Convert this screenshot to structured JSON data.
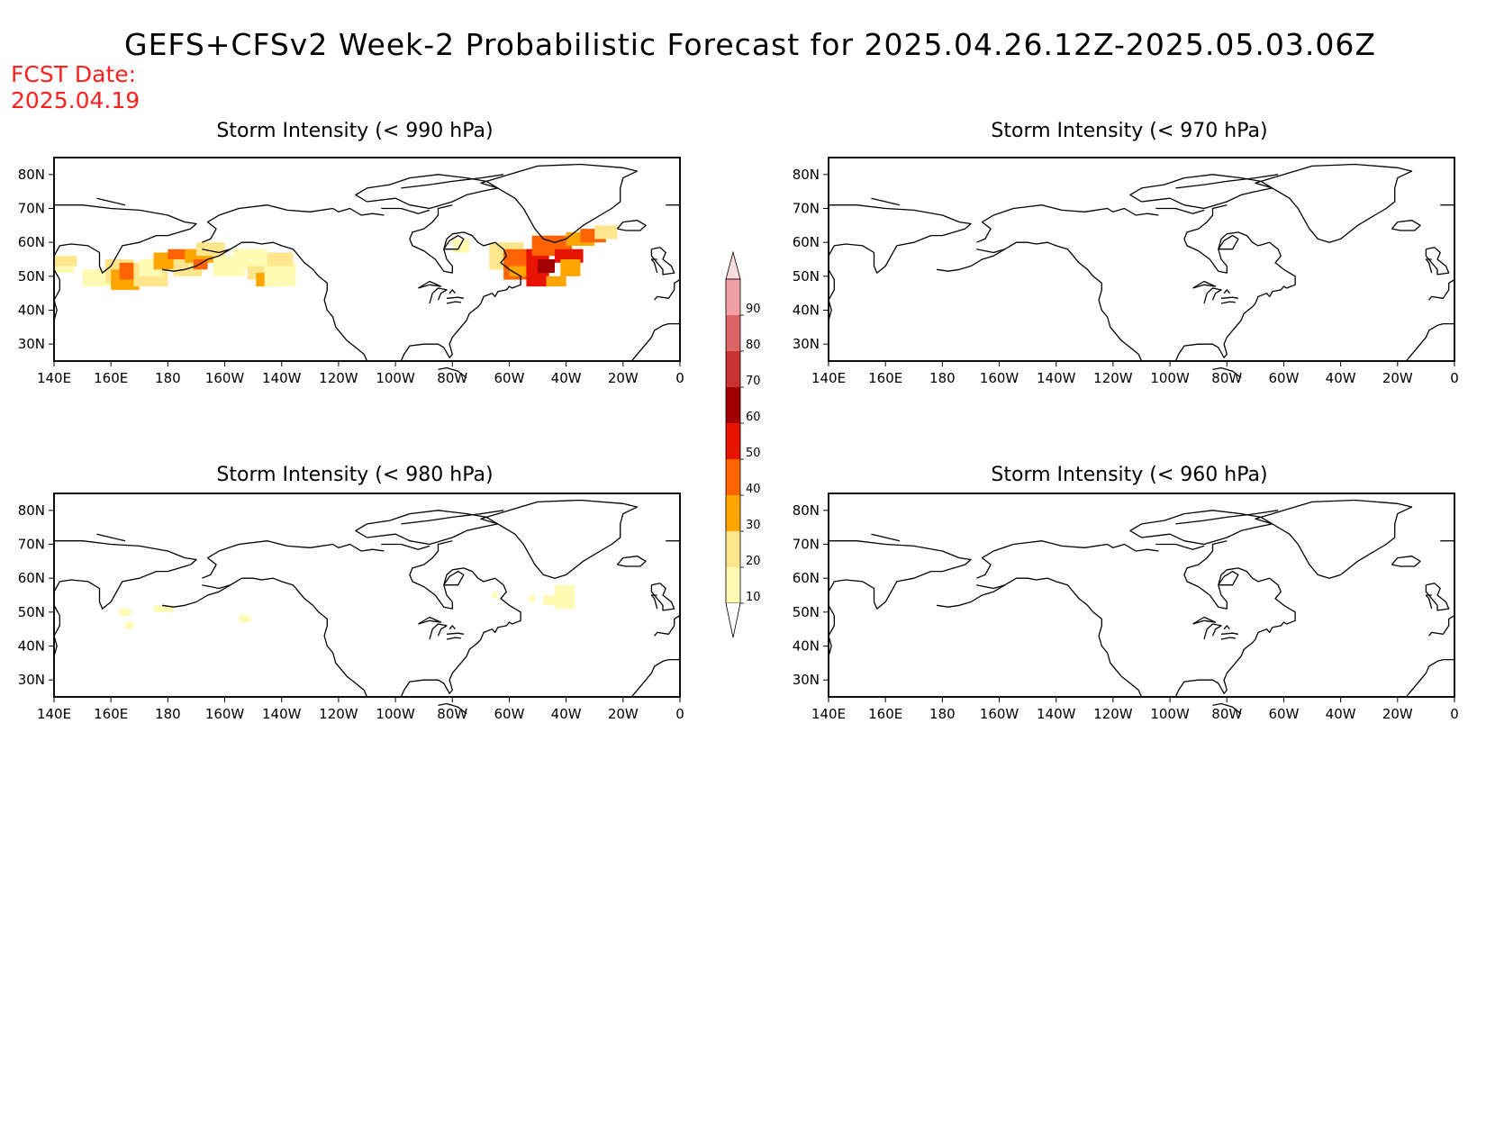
{
  "title": "GEFS+CFSv2 Week-2 Probabilistic Forecast for 2025.04.26.12Z-2025.05.03.06Z",
  "fcst_date": "FCST Date:\n2025.04.19",
  "panels": [
    {
      "title": "Storm Intensity (< 990 hPa)",
      "threshold_hpa": 990
    },
    {
      "title": "Storm Intensity (< 970 hPa)",
      "threshold_hpa": 970
    },
    {
      "title": "Storm Intensity (< 980 hPa)",
      "threshold_hpa": 980
    },
    {
      "title": "Storm Intensity (< 960 hPa)",
      "threshold_hpa": 960
    }
  ],
  "axes": {
    "lon_labels": [
      "140E",
      "160E",
      "180",
      "160W",
      "140W",
      "120W",
      "100W",
      "80W",
      "60W",
      "40W",
      "20W",
      "0"
    ],
    "lat_labels": [
      "80N",
      "70N",
      "60N",
      "50N",
      "40N",
      "30N"
    ]
  },
  "colorbar": {
    "labels": [
      "10",
      "20",
      "30",
      "40",
      "50",
      "60",
      "70",
      "80",
      "90"
    ],
    "colors": [
      "#fffab4",
      "#ffe68c",
      "#ffa500",
      "#ff6400",
      "#e61400",
      "#a00000",
      "#c83232",
      "#dc6464",
      "#f0a0a0",
      "#fadcdc"
    ]
  },
  "probability_areas": {
    "990": [
      {
        "region": "North Pacific",
        "lon_range": [
          "140E",
          "140W"
        ],
        "lat_range": [
          "45N",
          "60N"
        ],
        "max_probability_percent": 40
      },
      {
        "region": "North Atlantic",
        "lon_range": [
          "65W",
          "20W"
        ],
        "lat_range": [
          "45N",
          "65N"
        ],
        "max_probability_percent": 60
      }
    ],
    "980": [
      {
        "region": "North Pacific",
        "max_probability_percent": 20
      },
      {
        "region": "North Atlantic",
        "max_probability_percent": 20
      }
    ],
    "970": [],
    "960": []
  }
}
